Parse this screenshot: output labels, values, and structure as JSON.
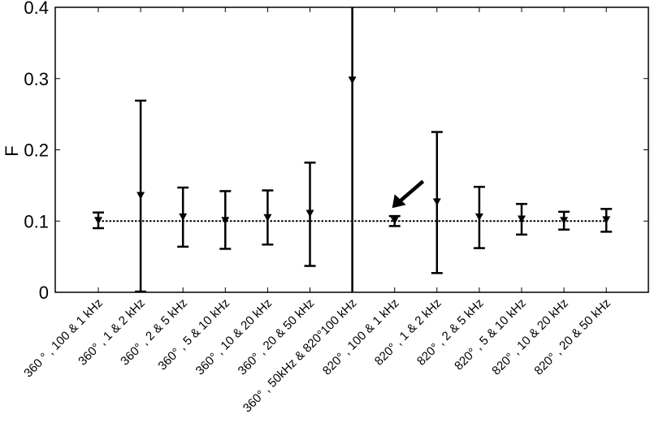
{
  "chart_data": {
    "type": "errorbar",
    "title": "",
    "xlabel": "",
    "ylabel": "F",
    "ylim": [
      0,
      0.4
    ],
    "yticks": [
      0,
      0.1,
      0.2,
      0.3,
      0.4
    ],
    "ytick_labels": [
      "0",
      "0.1",
      "0.2",
      "0.3",
      "0.4"
    ],
    "grid": false,
    "legend": null,
    "marker": "downward-triangle",
    "reference_line": {
      "y": 0.1,
      "style": "dotted"
    },
    "categories": [
      "360 ° , 100 & 1 kHz",
      "360° , 1 & 2 kHz",
      "360° , 2 & 5 kHz",
      "360° , 5 & 10 kHz",
      "360° , 10 & 20 kHz",
      "360° , 20 & 50 kHz",
      "360° , 50kHz & 820°100 kHz",
      "820° , 100 & 1 kHz",
      "820° , 1 & 2 kHz",
      "820° , 2 & 5 kHz",
      "820° , 5 & 10 kHz",
      "820° , 10 & 20 kHz",
      "820° , 20 & 50 kHz"
    ],
    "values": [
      0.1,
      0.135,
      0.105,
      0.1,
      0.104,
      0.11,
      0.297,
      0.1,
      0.126,
      0.105,
      0.102,
      0.1,
      0.101
    ],
    "upper": [
      0.112,
      0.269,
      0.147,
      0.142,
      0.143,
      0.182,
      0.45,
      0.107,
      0.225,
      0.148,
      0.124,
      0.113,
      0.117
    ],
    "lower": [
      0.09,
      0.001,
      0.064,
      0.061,
      0.067,
      0.037,
      -0.05,
      0.093,
      0.027,
      0.062,
      0.081,
      0.088,
      0.085
    ],
    "annotations": [
      {
        "type": "arrow",
        "points_to_category_index": 7,
        "description": "arrow pointing at 820°, 100 & 1 kHz point"
      }
    ]
  },
  "axis": {
    "ylabel": "F"
  }
}
